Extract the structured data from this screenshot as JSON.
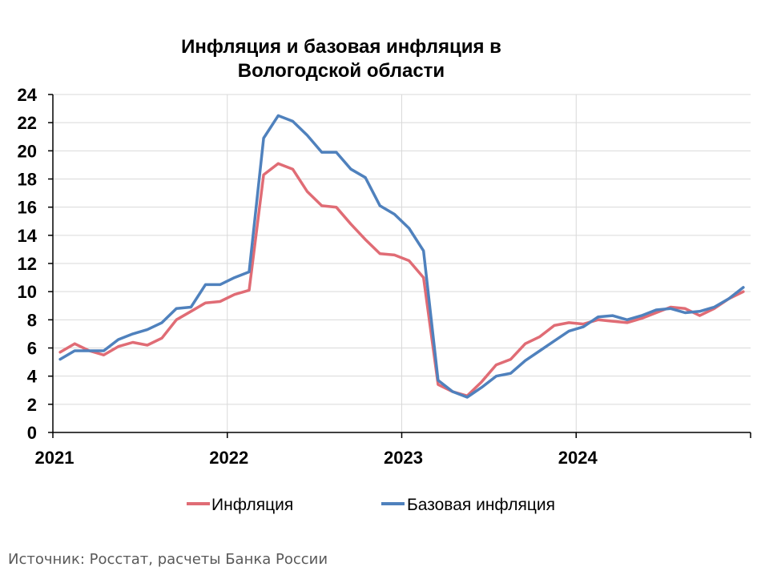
{
  "chart_data": {
    "type": "line",
    "title": "Инфляция и базовая инфляция в Вологодской области",
    "title_lines": [
      "Инфляция и базовая инфляция в",
      "Вологодской области"
    ],
    "xlabel": "",
    "ylabel": "",
    "ylim": [
      0,
      24
    ],
    "yticks": [
      "0",
      "2",
      "4",
      "6",
      "8",
      "10",
      "12",
      "14",
      "16",
      "18",
      "20",
      "22",
      "24"
    ],
    "xticks": [
      "2021",
      "2022",
      "2023",
      "2024"
    ],
    "x_start": "2021-01",
    "x_end": "2024-12",
    "grid": true,
    "legend_position": "bottom",
    "series": [
      {
        "name": "Инфляция",
        "color": "#e06c75",
        "values": [
          5.7,
          6.3,
          5.8,
          5.5,
          6.1,
          6.4,
          6.2,
          6.7,
          8.0,
          8.6,
          9.2,
          9.3,
          9.8,
          10.1,
          18.3,
          19.1,
          18.7,
          17.1,
          16.1,
          16.0,
          14.8,
          13.7,
          12.7,
          12.6,
          12.2,
          11.0,
          3.4,
          2.9,
          2.6,
          3.6,
          4.8,
          5.2,
          6.3,
          6.8,
          7.6,
          7.8,
          7.7,
          8.0,
          7.9,
          7.8,
          8.1,
          8.5,
          8.9,
          8.8,
          8.3,
          8.8,
          9.5,
          10.0
        ]
      },
      {
        "name": "Базовая инфляция",
        "color": "#4f81bd",
        "values": [
          5.2,
          5.8,
          5.8,
          5.8,
          6.6,
          7.0,
          7.3,
          7.8,
          8.8,
          8.9,
          10.5,
          10.5,
          11.0,
          11.4,
          20.9,
          22.5,
          22.1,
          21.1,
          19.9,
          19.9,
          18.7,
          18.1,
          16.1,
          15.5,
          14.5,
          12.9,
          3.7,
          2.9,
          2.5,
          3.2,
          4.0,
          4.2,
          5.1,
          5.8,
          6.5,
          7.2,
          7.5,
          8.2,
          8.3,
          8.0,
          8.3,
          8.7,
          8.8,
          8.5,
          8.6,
          8.9,
          9.5,
          10.3
        ]
      }
    ]
  },
  "source_note": "Источник: Росстат, расчеты Банка России"
}
